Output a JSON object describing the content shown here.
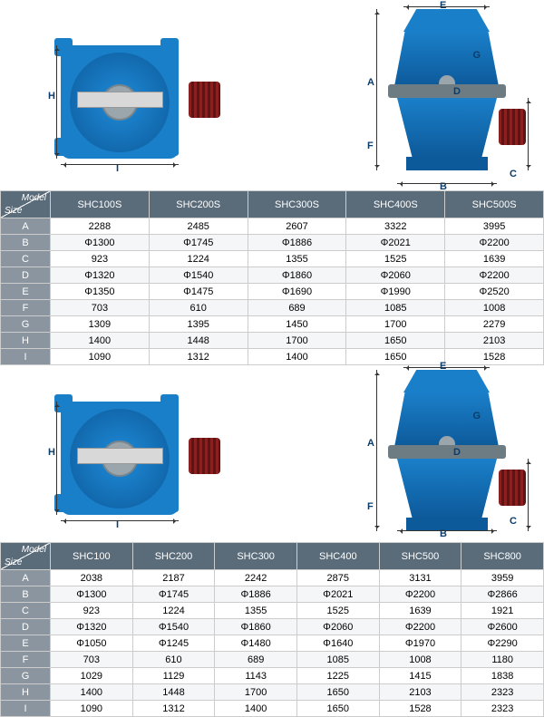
{
  "tables": [
    {
      "cornerTop": "Model",
      "cornerBot": "Size",
      "models": [
        "SHC100S",
        "SHC200S",
        "SHC300S",
        "SHC400S",
        "SHC500S"
      ],
      "rows": [
        {
          "label": "A",
          "cells": [
            "2288",
            "2485",
            "2607",
            "3322",
            "3995"
          ]
        },
        {
          "label": "B",
          "cells": [
            "Φ1300",
            "Φ1745",
            "Φ1886",
            "Φ2021",
            "Φ2200"
          ]
        },
        {
          "label": "C",
          "cells": [
            "923",
            "1224",
            "1355",
            "1525",
            "1639"
          ]
        },
        {
          "label": "D",
          "cells": [
            "Φ1320",
            "Φ1540",
            "Φ1860",
            "Φ2060",
            "Φ2200"
          ]
        },
        {
          "label": "E",
          "cells": [
            "Φ1350",
            "Φ1475",
            "Φ1690",
            "Φ1990",
            "Φ2520"
          ]
        },
        {
          "label": "F",
          "cells": [
            "703",
            "610",
            "689",
            "1085",
            "1008"
          ]
        },
        {
          "label": "G",
          "cells": [
            "1309",
            "1395",
            "1450",
            "1700",
            "2279"
          ]
        },
        {
          "label": "H",
          "cells": [
            "1400",
            "1448",
            "1700",
            "1650",
            "2103"
          ]
        },
        {
          "label": "I",
          "cells": [
            "1090",
            "1312",
            "1400",
            "1650",
            "1528"
          ]
        }
      ]
    },
    {
      "cornerTop": "Model",
      "cornerBot": "Size",
      "models": [
        "SHC100",
        "SHC200",
        "SHC300",
        "SHC400",
        "SHC500",
        "SHC800"
      ],
      "rows": [
        {
          "label": "A",
          "cells": [
            "2038",
            "2187",
            "2242",
            "2875",
            "3131",
            "3959"
          ]
        },
        {
          "label": "B",
          "cells": [
            "Φ1300",
            "Φ1745",
            "Φ1886",
            "Φ2021",
            "Φ2200",
            "Φ2866"
          ]
        },
        {
          "label": "C",
          "cells": [
            "923",
            "1224",
            "1355",
            "1525",
            "1639",
            "1921"
          ]
        },
        {
          "label": "D",
          "cells": [
            "Φ1320",
            "Φ1540",
            "Φ1860",
            "Φ2060",
            "Φ2200",
            "Φ2600"
          ]
        },
        {
          "label": "E",
          "cells": [
            "Φ1050",
            "Φ1245",
            "Φ1480",
            "Φ1640",
            "Φ1970",
            "Φ2290"
          ]
        },
        {
          "label": "F",
          "cells": [
            "703",
            "610",
            "689",
            "1085",
            "1008",
            "1180"
          ]
        },
        {
          "label": "G",
          "cells": [
            "1029",
            "1129",
            "1143",
            "1225",
            "1415",
            "1838"
          ]
        },
        {
          "label": "H",
          "cells": [
            "1400",
            "1448",
            "1700",
            "1650",
            "2103",
            "2323"
          ]
        },
        {
          "label": "I",
          "cells": [
            "1090",
            "1312",
            "1400",
            "1650",
            "1528",
            "2323"
          ]
        }
      ]
    }
  ],
  "dimlabels": {
    "topH": "H",
    "topI": "I",
    "sideA": "A",
    "sideB": "B",
    "sideC": "C",
    "sideD": "D",
    "sideE": "E",
    "sideF": "F",
    "sideG": "G"
  }
}
